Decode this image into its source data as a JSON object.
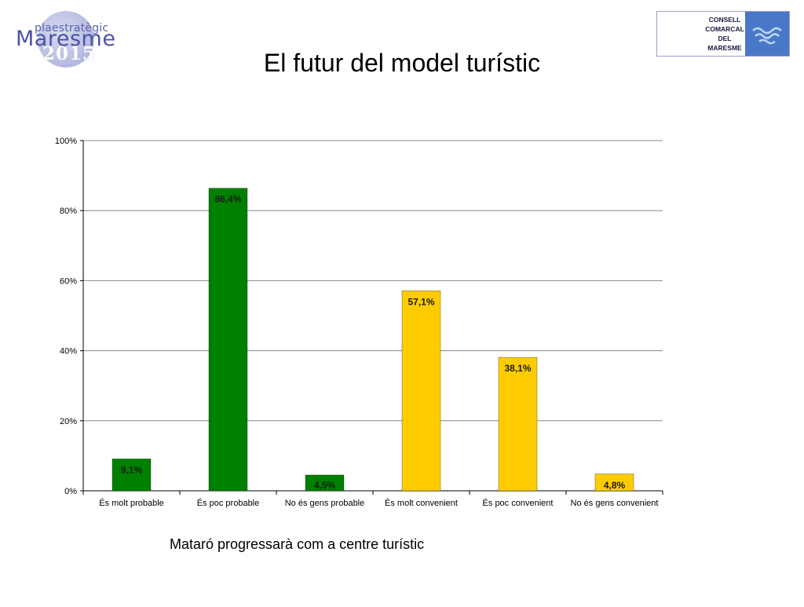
{
  "header": {
    "title": "El futur del model turístic",
    "logo_left": {
      "line1": "plaestratègic",
      "line2": "Maresme",
      "line3": "2015"
    },
    "logo_right": {
      "lines": [
        "CONSELL",
        "COMARCAL",
        "DEL",
        "MARESME"
      ]
    }
  },
  "colors": {
    "green": "#008000",
    "yellow": "#ffcc00",
    "grid": "#888888"
  },
  "chart_data": {
    "type": "bar",
    "categories": [
      "És molt probable",
      "És poc probable",
      "No és gens probable",
      "És molt convenient",
      "És poc convenient",
      "No és gens convenient"
    ],
    "values": [
      9.1,
      86.4,
      4.5,
      57.1,
      38.1,
      4.8
    ],
    "data_labels": [
      "9,1%",
      "86,4%",
      "4,5%",
      "57,1%",
      "38,1%",
      "4,8%"
    ],
    "bar_colors": [
      "#008000",
      "#008000",
      "#008000",
      "#ffcc00",
      "#ffcc00",
      "#ffcc00"
    ],
    "ylim": [
      0,
      100
    ],
    "yticks": [
      0,
      20,
      40,
      60,
      80,
      100
    ],
    "ytick_labels": [
      "0%",
      "20%",
      "40%",
      "60%",
      "80%",
      "100%"
    ],
    "grid": true,
    "xlabel": "Mataró progressarà  com a centre turístic"
  }
}
